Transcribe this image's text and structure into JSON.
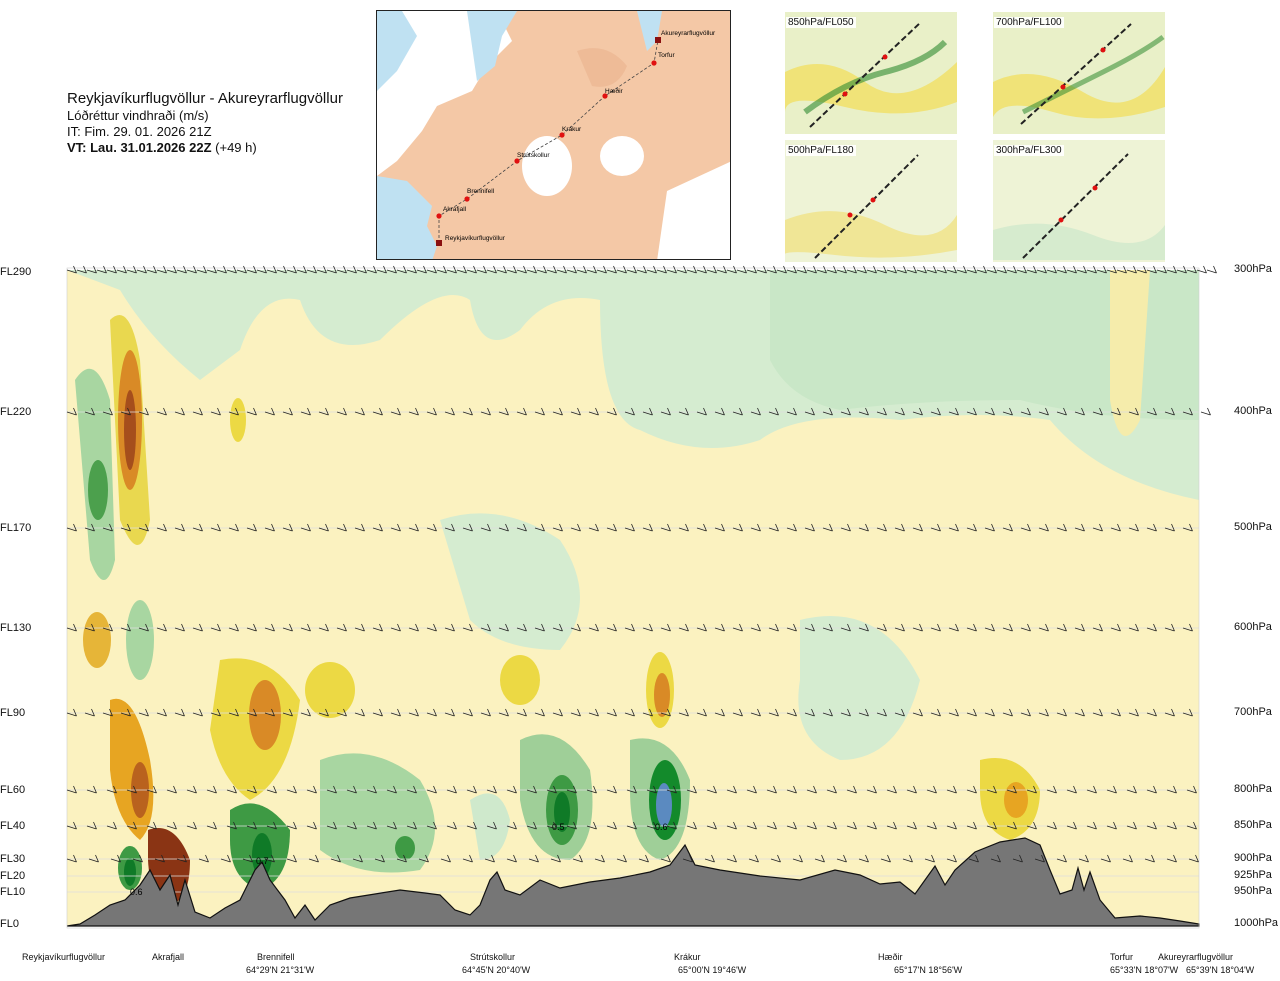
{
  "title": {
    "route": "Reykjavíkurflugvöllur - Akureyrarflugvöllur",
    "parameter": "Lóðréttur vindhraði (m/s)",
    "it": "IT: Fim. 29. 01. 2026 21Z",
    "vt_bold": "VT: Lau. 31.01.2026 22Z",
    "vt_rest": " (+49 h)"
  },
  "map": {
    "waypoints": [
      {
        "name": "Akureyrarflugvöllur"
      },
      {
        "name": "Torfur"
      },
      {
        "name": "Hæðir"
      },
      {
        "name": "Krákur"
      },
      {
        "name": "Strútskollur"
      },
      {
        "name": "Brennifell"
      },
      {
        "name": "Akrafjall"
      },
      {
        "name": "Reykjavíkurflugvöllur"
      }
    ]
  },
  "minimaps": [
    {
      "label": "850hPa/FL050"
    },
    {
      "label": "700hPa/FL100"
    },
    {
      "label": "500hPa/FL180"
    },
    {
      "label": "300hPa/FL300"
    }
  ],
  "levels": [
    {
      "fl": "FL290",
      "hpa": "300hPa"
    },
    {
      "fl": "FL220",
      "hpa": "400hPa"
    },
    {
      "fl": "FL170",
      "hpa": "500hPa"
    },
    {
      "fl": "FL130",
      "hpa": "600hPa"
    },
    {
      "fl": "FL90",
      "hpa": "700hPa"
    },
    {
      "fl": "FL60",
      "hpa": "800hPa"
    },
    {
      "fl": "FL40",
      "hpa": "850hPa"
    },
    {
      "fl": "FL30",
      "hpa": "900hPa"
    },
    {
      "fl": "FL20",
      "hpa": "925hPa"
    },
    {
      "fl": "FL10",
      "hpa": "950hPa"
    },
    {
      "fl": "FL0",
      "hpa": "1000hPa"
    }
  ],
  "locations": [
    {
      "name": "Reykjavíkurflugvöllur",
      "coord": ""
    },
    {
      "name": "Akrafjall",
      "coord": ""
    },
    {
      "name": "Brennifell",
      "coord": "64°29'N 21°31'W"
    },
    {
      "name": "Strútskollur",
      "coord": "64°45'N 20°40'W"
    },
    {
      "name": "Krákur",
      "coord": "65°00'N 19°46'W"
    },
    {
      "name": "Hæðir",
      "coord": "65°17'N 18°56'W"
    },
    {
      "name": "Torfur",
      "coord": "65°33'N 18°07'W"
    },
    {
      "name": "Akureyrarflugvöllur",
      "coord": "65°39'N 18°04'W"
    }
  ],
  "chart_data": {
    "type": "heatmap",
    "title": "Lóðréttur vindhraði (m/s)",
    "xlabel": "",
    "ylabel": "",
    "y_levels_hpa": [
      300,
      400,
      500,
      600,
      700,
      800,
      850,
      900,
      925,
      950,
      1000
    ],
    "annotations": [
      {
        "text": "0.6",
        "location": "Reykjavíkurflugvöllur-Akrafjall",
        "level_hpa": 950
      },
      {
        "text": "0.7",
        "location": "Brennifell",
        "level_hpa": 900
      },
      {
        "text": "0.5",
        "location": "Strútskollur-Krákur",
        "level_hpa": 850
      },
      {
        "text": "0.6",
        "location": "Krákur",
        "level_hpa": 850
      }
    ],
    "colors": {
      "strong_down": "#7a2a12",
      "down2": "#c86f1c",
      "down1": "#e7a522",
      "weak_down": "#ede04a",
      "very_weak_down": "#f5ecab",
      "neutral": "#fbfbe8",
      "weak_up": "#cfe9cc",
      "up1": "#9fcf98",
      "up2": "#5fb05c",
      "up3": "#138a2b",
      "strong_up": "#5b8ac0",
      "terrain": "#767676"
    }
  }
}
